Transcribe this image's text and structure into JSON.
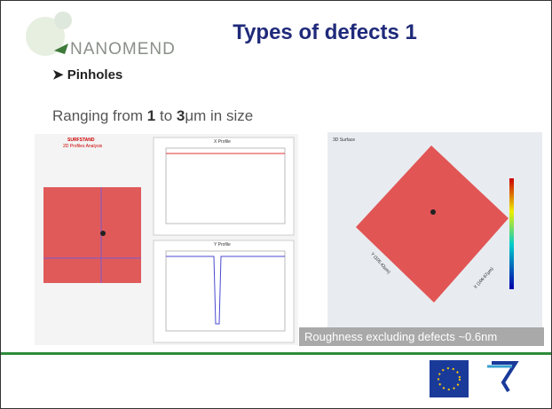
{
  "logo": "NANOMEND",
  "title": "Types of defects 1",
  "bullet": "Pinholes",
  "text": {
    "parts": [
      "Ranging from ",
      "1",
      " to ",
      "3",
      "μm in size"
    ]
  },
  "figure_left": {
    "title": "SURFSTAND",
    "subtitle": "2D Profiles Analysis",
    "panel_1": "X Profile",
    "panel_2": "Y Profile"
  },
  "figure_right": {
    "title": "3D Surface",
    "axis_x": "X (106.67µm)",
    "axis_y": "Y (105.42µm)"
  },
  "caption": "Roughness excluding defects ~0.6nm"
}
